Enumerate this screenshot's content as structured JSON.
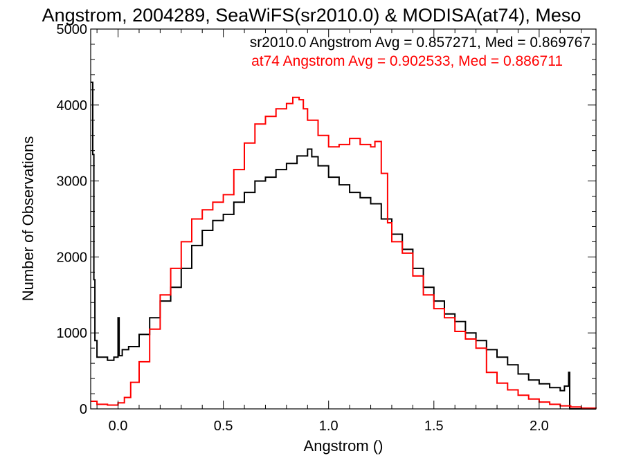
{
  "chart_data": {
    "type": "line",
    "title": "Angstrom, 2004289, SeaWiFS(sr2010.0) & MODISA(at74), Meso",
    "xlabel": "Angstrom ()",
    "ylabel": "Number of Observations",
    "xlim": [
      -0.13,
      2.27
    ],
    "ylim": [
      0,
      5000
    ],
    "x_ticks": [
      0.0,
      0.5,
      1.0,
      1.5,
      2.0
    ],
    "x_tick_labels": [
      "0.0",
      "0.5",
      "1.0",
      "1.5",
      "2.0"
    ],
    "y_ticks": [
      0,
      1000,
      2000,
      3000,
      4000,
      5000
    ],
    "y_tick_labels": [
      "0",
      "1000",
      "2000",
      "3000",
      "4000",
      "5000"
    ],
    "grid": false,
    "legend": [
      {
        "text": "sr2010.0 Angstrom Avg = 0.857271, Med = 0.869767",
        "color": "#000000"
      },
      {
        "text": "at74 Angstrom Avg = 0.902533, Med = 0.886711",
        "color": "#ff0000"
      }
    ],
    "series": [
      {
        "color": "#000000",
        "points": [
          [
            -0.13,
            4300
          ],
          [
            -0.12,
            3350
          ],
          [
            -0.115,
            1700
          ],
          [
            -0.11,
            900
          ],
          [
            -0.1,
            680
          ],
          [
            -0.05,
            640
          ],
          [
            -0.02,
            680
          ],
          [
            0.0,
            1200
          ],
          [
            0.005,
            700
          ],
          [
            0.02,
            780
          ],
          [
            0.05,
            820
          ],
          [
            0.1,
            980
          ],
          [
            0.15,
            1200
          ],
          [
            0.2,
            1420
          ],
          [
            0.25,
            1600
          ],
          [
            0.3,
            1850
          ],
          [
            0.35,
            2150
          ],
          [
            0.4,
            2350
          ],
          [
            0.45,
            2480
          ],
          [
            0.5,
            2560
          ],
          [
            0.55,
            2720
          ],
          [
            0.6,
            2850
          ],
          [
            0.65,
            3000
          ],
          [
            0.7,
            3050
          ],
          [
            0.75,
            3150
          ],
          [
            0.8,
            3230
          ],
          [
            0.85,
            3330
          ],
          [
            0.9,
            3420
          ],
          [
            0.92,
            3320
          ],
          [
            0.95,
            3200
          ],
          [
            1.0,
            3050
          ],
          [
            1.05,
            2950
          ],
          [
            1.1,
            2850
          ],
          [
            1.15,
            2780
          ],
          [
            1.2,
            2700
          ],
          [
            1.25,
            2500
          ],
          [
            1.3,
            2300
          ],
          [
            1.35,
            2100
          ],
          [
            1.4,
            1850
          ],
          [
            1.45,
            1600
          ],
          [
            1.5,
            1420
          ],
          [
            1.55,
            1250
          ],
          [
            1.6,
            1150
          ],
          [
            1.65,
            1000
          ],
          [
            1.7,
            900
          ],
          [
            1.75,
            780
          ],
          [
            1.8,
            680
          ],
          [
            1.85,
            580
          ],
          [
            1.9,
            460
          ],
          [
            1.95,
            380
          ],
          [
            2.0,
            330
          ],
          [
            2.05,
            280
          ],
          [
            2.1,
            240
          ],
          [
            2.12,
            300
          ],
          [
            2.14,
            480
          ],
          [
            2.145,
            0
          ],
          [
            2.27,
            0
          ]
        ]
      },
      {
        "color": "#ff0000",
        "points": [
          [
            -0.13,
            100
          ],
          [
            -0.1,
            60
          ],
          [
            -0.05,
            50
          ],
          [
            0.0,
            80
          ],
          [
            0.03,
            150
          ],
          [
            0.06,
            350
          ],
          [
            0.1,
            620
          ],
          [
            0.15,
            1050
          ],
          [
            0.2,
            1500
          ],
          [
            0.25,
            1850
          ],
          [
            0.3,
            2200
          ],
          [
            0.35,
            2500
          ],
          [
            0.4,
            2620
          ],
          [
            0.45,
            2720
          ],
          [
            0.5,
            2820
          ],
          [
            0.55,
            3150
          ],
          [
            0.6,
            3500
          ],
          [
            0.65,
            3750
          ],
          [
            0.7,
            3850
          ],
          [
            0.75,
            3950
          ],
          [
            0.8,
            4020
          ],
          [
            0.83,
            4100
          ],
          [
            0.86,
            4070
          ],
          [
            0.88,
            3950
          ],
          [
            0.9,
            3800
          ],
          [
            0.95,
            3600
          ],
          [
            1.0,
            3450
          ],
          [
            1.05,
            3480
          ],
          [
            1.1,
            3560
          ],
          [
            1.15,
            3480
          ],
          [
            1.2,
            3450
          ],
          [
            1.22,
            3520
          ],
          [
            1.25,
            3100
          ],
          [
            1.28,
            2450
          ],
          [
            1.3,
            2200
          ],
          [
            1.35,
            2050
          ],
          [
            1.4,
            1750
          ],
          [
            1.45,
            1500
          ],
          [
            1.5,
            1320
          ],
          [
            1.55,
            1200
          ],
          [
            1.6,
            1020
          ],
          [
            1.65,
            920
          ],
          [
            1.7,
            800
          ],
          [
            1.75,
            480
          ],
          [
            1.8,
            340
          ],
          [
            1.85,
            250
          ],
          [
            1.9,
            180
          ],
          [
            1.95,
            130
          ],
          [
            2.0,
            90
          ],
          [
            2.05,
            60
          ],
          [
            2.1,
            40
          ],
          [
            2.15,
            25
          ],
          [
            2.2,
            10
          ],
          [
            2.27,
            5
          ]
        ]
      }
    ]
  }
}
